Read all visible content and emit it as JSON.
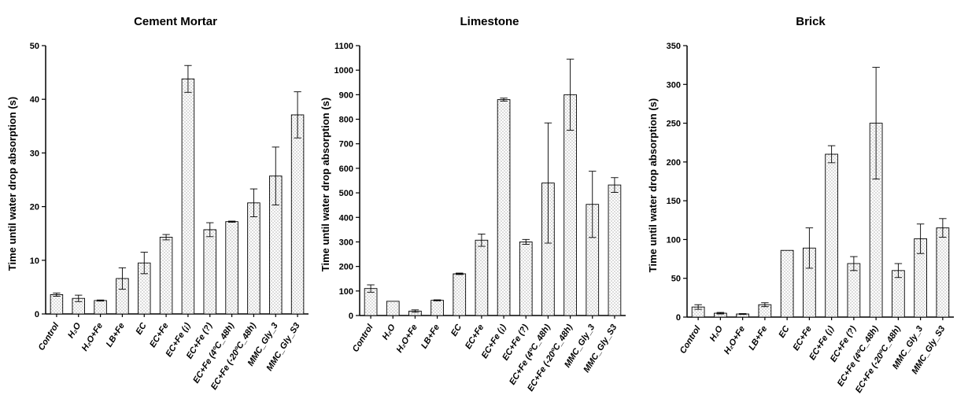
{
  "chart_data": [
    {
      "type": "bar",
      "title": "Cement Mortar",
      "ylabel": "Time until water drop absorption (s)",
      "ylim": [
        0,
        50
      ],
      "yticks": [
        0,
        10,
        20,
        30,
        40,
        50
      ],
      "categories": [
        "Control",
        "H₂O",
        "H₂O+Fe",
        "LB+Fe",
        "EC",
        "EC+Fe",
        "EC+Fe (¡)",
        "EC+Fe (?)",
        "EC+Fe (4ºC_48h)",
        "EC+Fe (-20ºC_48h)",
        "MMC_Gly_3",
        "MMC_Gly_S3"
      ],
      "values": [
        3.6,
        2.9,
        2.5,
        6.6,
        9.5,
        14.3,
        43.8,
        15.7,
        17.2,
        20.7,
        25.7,
        37.1
      ],
      "errors": [
        0.3,
        0.6,
        0.1,
        2.0,
        2.0,
        0.5,
        2.5,
        1.3,
        0.1,
        2.6,
        5.4,
        4.3
      ],
      "pattern": "dotted",
      "grid": false,
      "legend": "none"
    },
    {
      "type": "bar",
      "title": "Limestone",
      "ylabel": "Time until water drop absorption (s)",
      "ylim": [
        0,
        1100
      ],
      "yticks": [
        0,
        100,
        200,
        300,
        400,
        500,
        600,
        700,
        800,
        900,
        1000,
        1100
      ],
      "categories": [
        "Control",
        "H₂O",
        "H₂O+Fe",
        "LB+Fe",
        "EC",
        "EC+Fe",
        "EC+Fe (¡)",
        "EC+Fe (?)",
        "EC+Fe (4ºC_48h)",
        "EC+Fe (-20ºC_48h)",
        "MMC_Gly_3",
        "MMC_Gly_S3"
      ],
      "values": [
        110,
        58,
        18,
        62,
        170,
        307,
        880,
        300,
        540,
        900,
        453,
        532
      ],
      "errors": [
        15,
        0,
        5,
        2,
        3,
        25,
        6,
        10,
        245,
        145,
        135,
        30
      ],
      "pattern": "dotted",
      "grid": false,
      "legend": "none"
    },
    {
      "type": "bar",
      "title": "Brick",
      "ylabel": "Time until water drop absorption (s)",
      "ylim": [
        0,
        350
      ],
      "yticks": [
        0,
        50,
        100,
        150,
        200,
        250,
        300,
        350
      ],
      "categories": [
        "Control",
        "H₂O",
        "H₂O+Fe",
        "LB+Fe",
        "EC",
        "EC+Fe",
        "EC+Fe (¡)",
        "EC+Fe (?)",
        "EC+Fe (4ºC_48h)",
        "EC+Fe (-20ºC_48h)",
        "MMC_Gly_3",
        "MMC_Gly_S3"
      ],
      "values": [
        13,
        5,
        4,
        16,
        86,
        89,
        210,
        69,
        250,
        60,
        101,
        115
      ],
      "errors": [
        3,
        1,
        0.5,
        2.5,
        0,
        26,
        11,
        9,
        72,
        9,
        19,
        12
      ],
      "pattern": "dotted",
      "grid": false,
      "legend": "none"
    }
  ]
}
